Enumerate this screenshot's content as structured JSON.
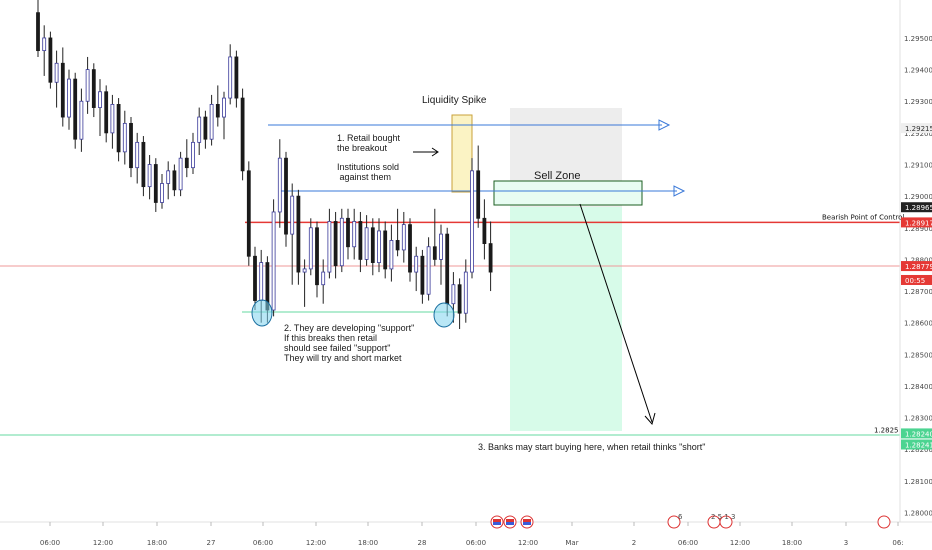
{
  "chart_data": {
    "type": "candlestick",
    "instrument_axis": "price",
    "ylim": [
      1.2797,
      1.2962
    ],
    "y_ticks": [
      "1.29500",
      "1.29400",
      "1.29300",
      "1.29200",
      "1.29100",
      "1.29000",
      "1.28900",
      "1.28800",
      "1.28700",
      "1.28600",
      "1.28500",
      "1.28400",
      "1.28300",
      "1.28200",
      "1.28100",
      "1.28000"
    ],
    "x_ticks": [
      "06:00",
      "12:00",
      "18:00",
      "27",
      "06:00",
      "12:00",
      "18:00",
      "28",
      "06:00",
      "12:00",
      "Mar",
      "2",
      "06:00",
      "12:00",
      "18:00",
      "3",
      "06:"
    ],
    "price_labels": [
      {
        "value": "1.29215",
        "y": 1.29215,
        "kind": "gray"
      },
      {
        "value": "1.28965",
        "y": 1.28965,
        "kind": "dark"
      },
      {
        "value": "1.28917",
        "y": 1.28917,
        "kind": "red"
      },
      {
        "value": "1.28779",
        "y": 1.28779,
        "kind": "red"
      },
      {
        "value": "00:55",
        "y": 1.28735,
        "kind": "red"
      },
      {
        "value": "1.28240",
        "y": 1.2825,
        "kind": "green"
      },
      {
        "value": "1.28241",
        "y": 1.28215,
        "kind": "green"
      }
    ],
    "level_labels": [
      {
        "text": "Bearish Point of Control",
        "y": 1.28935
      },
      {
        "text": "1.2825",
        "y": 1.28262
      }
    ],
    "horizontal_lines": [
      {
        "name": "bearish-poc-line",
        "y": 1.28917,
        "color": "#e53935"
      },
      {
        "name": "current-price-line",
        "y": 1.28779,
        "color": "#ef9a9a"
      },
      {
        "name": "target-line",
        "y": 1.28245,
        "color": "#66d9a0"
      },
      {
        "name": "support-line",
        "y": 1.286,
        "color": "#66d9a0"
      }
    ],
    "annotations": [
      "Liquidity Spike",
      "1. Retail bought\nthe breakout",
      "Institutions sold\n against them",
      "Sell Zone",
      "2. They are developing \"support\"\nIf this breaks then retail\nshould see failed \"support\"\nThey will try and short market",
      "3. Banks may start buying here, when retail thinks \"short\""
    ],
    "candles": [
      [
        1.2958,
        1.2962,
        1.2944,
        1.2946
      ],
      [
        1.2946,
        1.2954,
        1.2938,
        1.295
      ],
      [
        1.295,
        1.2952,
        1.2934,
        1.2936
      ],
      [
        1.2936,
        1.2946,
        1.2928,
        1.2942
      ],
      [
        1.2942,
        1.2947,
        1.2922,
        1.2925
      ],
      [
        1.2925,
        1.294,
        1.2921,
        1.2937
      ],
      [
        1.2937,
        1.2939,
        1.2915,
        1.2918
      ],
      [
        1.2918,
        1.2934,
        1.2914,
        1.293
      ],
      [
        1.293,
        1.2944,
        1.2926,
        1.294
      ],
      [
        1.294,
        1.2942,
        1.2925,
        1.2928
      ],
      [
        1.2928,
        1.2937,
        1.2919,
        1.2933
      ],
      [
        1.2933,
        1.2935,
        1.2917,
        1.292
      ],
      [
        1.292,
        1.2932,
        1.2915,
        1.2929
      ],
      [
        1.2929,
        1.2931,
        1.2911,
        1.2914
      ],
      [
        1.2914,
        1.2927,
        1.291,
        1.2923
      ],
      [
        1.2923,
        1.2925,
        1.2906,
        1.2909
      ],
      [
        1.2909,
        1.292,
        1.2904,
        1.2917
      ],
      [
        1.2917,
        1.2919,
        1.29,
        1.2903
      ],
      [
        1.2903,
        1.2913,
        1.2899,
        1.291
      ],
      [
        1.291,
        1.2912,
        1.2895,
        1.2898
      ],
      [
        1.2898,
        1.2907,
        1.2896,
        1.2904
      ],
      [
        1.2904,
        1.2911,
        1.2899,
        1.2908
      ],
      [
        1.2908,
        1.291,
        1.29,
        1.2902
      ],
      [
        1.2902,
        1.2914,
        1.29,
        1.2912
      ],
      [
        1.2912,
        1.2918,
        1.2906,
        1.2909
      ],
      [
        1.2909,
        1.292,
        1.2907,
        1.2917
      ],
      [
        1.2917,
        1.2928,
        1.2913,
        1.2925
      ],
      [
        1.2925,
        1.2927,
        1.2915,
        1.2918
      ],
      [
        1.2918,
        1.2932,
        1.2916,
        1.2929
      ],
      [
        1.2929,
        1.2935,
        1.2922,
        1.2925
      ],
      [
        1.2925,
        1.2933,
        1.2918,
        1.2931
      ],
      [
        1.2931,
        1.2948,
        1.2929,
        1.2944
      ],
      [
        1.2944,
        1.2946,
        1.2928,
        1.2931
      ],
      [
        1.2931,
        1.2934,
        1.2905,
        1.2908
      ],
      [
        1.2908,
        1.2911,
        1.2878,
        1.2881
      ],
      [
        1.2881,
        1.2884,
        1.2864,
        1.2867
      ],
      [
        1.2867,
        1.2883,
        1.286,
        1.2879
      ],
      [
        1.2879,
        1.2881,
        1.286,
        1.2864
      ],
      [
        1.2864,
        1.2899,
        1.2862,
        1.2895
      ],
      [
        1.2895,
        1.2918,
        1.289,
        1.2912
      ],
      [
        1.2912,
        1.2914,
        1.2884,
        1.2888
      ],
      [
        1.2888,
        1.2904,
        1.2872,
        1.29
      ],
      [
        1.29,
        1.2902,
        1.2872,
        1.2876
      ],
      [
        1.2876,
        1.288,
        1.2865,
        1.2877
      ],
      [
        1.2877,
        1.2893,
        1.2875,
        1.289
      ],
      [
        1.289,
        1.2892,
        1.2868,
        1.2872
      ],
      [
        1.2872,
        1.288,
        1.2866,
        1.2876
      ],
      [
        1.2876,
        1.2896,
        1.2874,
        1.2892
      ],
      [
        1.2892,
        1.2895,
        1.2874,
        1.2878
      ],
      [
        1.2878,
        1.2896,
        1.2876,
        1.2893
      ],
      [
        1.2893,
        1.2896,
        1.288,
        1.2884
      ],
      [
        1.2884,
        1.2896,
        1.288,
        1.2892
      ],
      [
        1.2892,
        1.2895,
        1.2876,
        1.288
      ],
      [
        1.288,
        1.2894,
        1.2878,
        1.289
      ],
      [
        1.289,
        1.2893,
        1.2875,
        1.2879
      ],
      [
        1.2879,
        1.2893,
        1.2876,
        1.2889
      ],
      [
        1.2889,
        1.2892,
        1.2874,
        1.2877
      ],
      [
        1.2877,
        1.2891,
        1.2873,
        1.2886
      ],
      [
        1.2886,
        1.2896,
        1.2881,
        1.2883
      ],
      [
        1.2883,
        1.2895,
        1.2879,
        1.2891
      ],
      [
        1.2891,
        1.2893,
        1.2873,
        1.2876
      ],
      [
        1.2876,
        1.2884,
        1.287,
        1.2881
      ],
      [
        1.2881,
        1.2883,
        1.2866,
        1.2869
      ],
      [
        1.2869,
        1.2887,
        1.2867,
        1.2884
      ],
      [
        1.2884,
        1.2896,
        1.2878,
        1.288
      ],
      [
        1.288,
        1.2891,
        1.2872,
        1.2888
      ],
      [
        1.2888,
        1.289,
        1.2862,
        1.2866
      ],
      [
        1.2866,
        1.2876,
        1.286,
        1.2872
      ],
      [
        1.2872,
        1.2874,
        1.2858,
        1.2863
      ],
      [
        1.2863,
        1.288,
        1.286,
        1.2876
      ],
      [
        1.2876,
        1.2912,
        1.2874,
        1.2908
      ],
      [
        1.2908,
        1.2916,
        1.289,
        1.2893
      ],
      [
        1.2893,
        1.2899,
        1.288,
        1.2885
      ],
      [
        1.2885,
        1.2892,
        1.287,
        1.2876
      ]
    ]
  },
  "legend_flags": [
    "6",
    "2 5 1 3"
  ]
}
